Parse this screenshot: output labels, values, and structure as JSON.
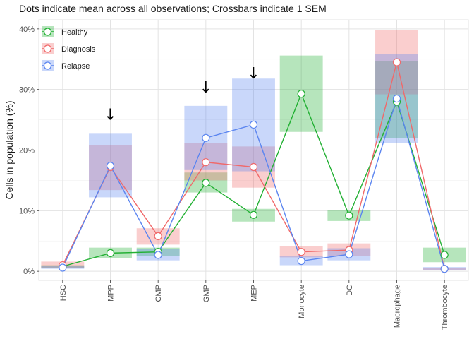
{
  "chart_data": {
    "type": "line",
    "title": "Dots indicate mean across all observations; Crossbars indicate 1 SEM",
    "xlabel": "",
    "ylabel": "Cells in population (%)",
    "ylim": [
      -1.5,
      41.5
    ],
    "yticks": [
      0,
      10,
      20,
      30,
      40
    ],
    "ytick_labels": [
      "0%",
      "10%",
      "20%",
      "30%",
      "40%"
    ],
    "categories": [
      "HSC",
      "MPP",
      "CMP",
      "GMP",
      "MEP",
      "Monocyte",
      "DC",
      "Macrophage",
      "Thrombocyte"
    ],
    "grid": true,
    "legend_position": "top-left",
    "series": [
      {
        "name": "Healthy",
        "color": "#22b033",
        "values": [
          0.8,
          3.0,
          3.2,
          14.6,
          9.3,
          29.3,
          9.2,
          28.0,
          2.7
        ],
        "sem_low": [
          0.6,
          2.2,
          2.5,
          13.0,
          8.2,
          23.0,
          8.3,
          22.0,
          1.5
        ],
        "sem_high": [
          1.0,
          3.9,
          3.9,
          16.3,
          10.3,
          35.6,
          10.1,
          34.7,
          3.9
        ]
      },
      {
        "name": "Diagnosis",
        "color": "#f0696a",
        "values": [
          1.0,
          17.2,
          5.8,
          18.0,
          17.2,
          3.2,
          3.5,
          34.5,
          0.4
        ],
        "sem_low": [
          0.5,
          13.4,
          4.4,
          15.0,
          13.8,
          2.3,
          2.5,
          29.2,
          0.2
        ],
        "sem_high": [
          1.6,
          20.8,
          7.1,
          21.2,
          20.6,
          4.2,
          4.6,
          39.8,
          0.6
        ]
      },
      {
        "name": "Relapse",
        "color": "#5b85f0",
        "values": [
          0.6,
          17.4,
          2.7,
          22.0,
          24.2,
          1.7,
          2.8,
          28.5,
          0.4
        ],
        "sem_low": [
          0.4,
          12.2,
          1.8,
          16.7,
          16.5,
          1.0,
          1.8,
          21.2,
          0.2
        ],
        "sem_high": [
          0.9,
          22.7,
          3.7,
          27.3,
          31.8,
          2.5,
          3.8,
          35.8,
          0.7
        ]
      }
    ],
    "annotations": [
      {
        "type": "arrow",
        "glyph": "↓",
        "category": "MPP",
        "y": 25.0
      },
      {
        "type": "arrow",
        "glyph": "↓",
        "category": "GMP",
        "y": 29.5
      },
      {
        "type": "arrow",
        "glyph": "↓",
        "category": "MEP",
        "y": 31.8
      }
    ]
  }
}
